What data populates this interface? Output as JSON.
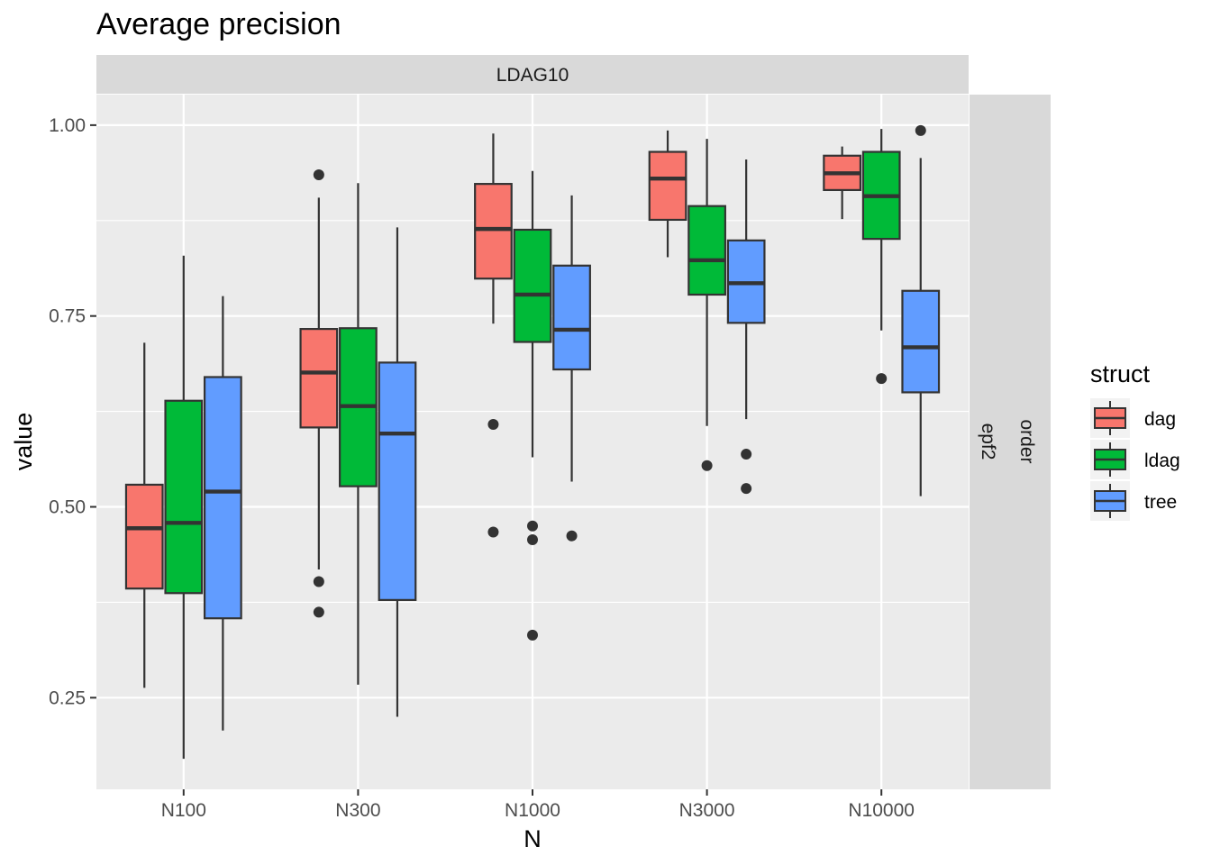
{
  "chart_data": {
    "type": "boxplot",
    "title": "Average precision",
    "xlabel": "N",
    "ylabel": "value",
    "ylim": [
      0.13,
      1.04
    ],
    "yticks": [
      0.25,
      0.5,
      0.75,
      1.0
    ],
    "ytick_labels": [
      "0.25",
      "0.50",
      "0.75",
      "1.00"
    ],
    "categories": [
      "N100",
      "N300",
      "N1000",
      "N3000",
      "N10000"
    ],
    "facet_top": "LDAG10",
    "facet_right": [
      "order",
      "epf2"
    ],
    "grid": true,
    "legend": {
      "title": "struct",
      "position": "right"
    },
    "series": [
      {
        "name": "dag",
        "color": "#F8766D",
        "boxes": [
          {
            "min": 0.263,
            "q1": 0.393,
            "median": 0.472,
            "q3": 0.529,
            "max": 0.715,
            "outliers": []
          },
          {
            "min": 0.418,
            "q1": 0.604,
            "median": 0.676,
            "q3": 0.733,
            "max": 0.905,
            "outliers": [
              0.935,
              0.402,
              0.362
            ]
          },
          {
            "min": 0.74,
            "q1": 0.799,
            "median": 0.864,
            "q3": 0.923,
            "max": 0.989,
            "outliers": [
              0.608,
              0.467
            ]
          },
          {
            "min": 0.827,
            "q1": 0.876,
            "median": 0.93,
            "q3": 0.965,
            "max": 0.993,
            "outliers": []
          },
          {
            "min": 0.877,
            "q1": 0.915,
            "median": 0.937,
            "q3": 0.96,
            "max": 0.972,
            "outliers": []
          }
        ]
      },
      {
        "name": "ldag",
        "color": "#00BA38",
        "boxes": [
          {
            "min": 0.17,
            "q1": 0.387,
            "median": 0.479,
            "q3": 0.639,
            "max": 0.829,
            "outliers": []
          },
          {
            "min": 0.267,
            "q1": 0.527,
            "median": 0.632,
            "q3": 0.734,
            "max": 0.924,
            "outliers": []
          },
          {
            "min": 0.565,
            "q1": 0.716,
            "median": 0.778,
            "q3": 0.863,
            "max": 0.94,
            "outliers": [
              0.475,
              0.457,
              0.332
            ]
          },
          {
            "min": 0.606,
            "q1": 0.778,
            "median": 0.823,
            "q3": 0.894,
            "max": 0.982,
            "outliers": [
              0.554
            ]
          },
          {
            "min": 0.731,
            "q1": 0.851,
            "median": 0.907,
            "q3": 0.965,
            "max": 0.995,
            "outliers": [
              0.668
            ]
          }
        ]
      },
      {
        "name": "tree",
        "color": "#619CFF",
        "boxes": [
          {
            "min": 0.207,
            "q1": 0.354,
            "median": 0.52,
            "q3": 0.67,
            "max": 0.776,
            "outliers": []
          },
          {
            "min": 0.225,
            "q1": 0.378,
            "median": 0.596,
            "q3": 0.689,
            "max": 0.866,
            "outliers": []
          },
          {
            "min": 0.533,
            "q1": 0.68,
            "median": 0.732,
            "q3": 0.816,
            "max": 0.908,
            "outliers": [
              0.462
            ]
          },
          {
            "min": 0.615,
            "q1": 0.741,
            "median": 0.793,
            "q3": 0.849,
            "max": 0.955,
            "outliers": [
              0.569,
              0.524
            ]
          },
          {
            "min": 0.514,
            "q1": 0.65,
            "median": 0.709,
            "q3": 0.783,
            "max": 0.957,
            "outliers": [
              0.993
            ]
          }
        ]
      }
    ]
  }
}
